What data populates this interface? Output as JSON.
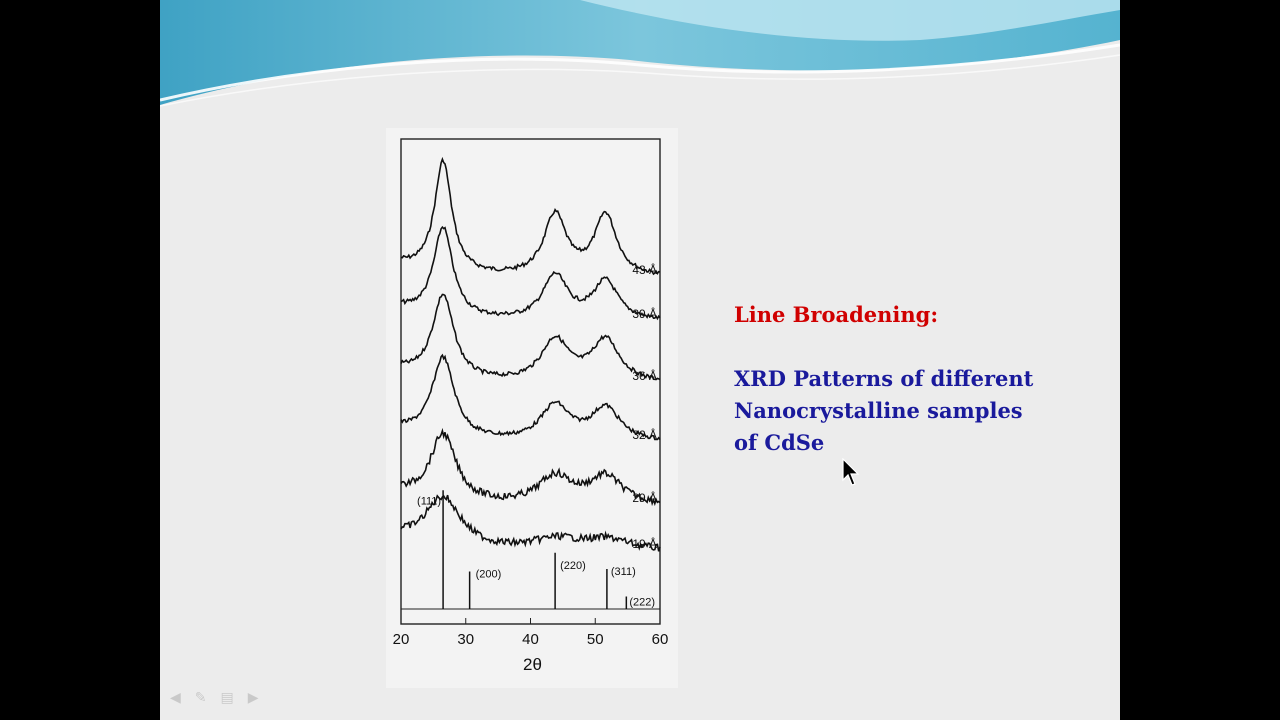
{
  "slide": {
    "heading": "Line Broadening:",
    "description_lines": [
      "XRD Patterns of different",
      "Nanocrystalline samples",
      "of CdSe"
    ],
    "colors": {
      "heading": "#d00000",
      "description": "#1a1a9c",
      "banner": "#5fb6d1",
      "background": "#ececec"
    },
    "nav_icons": [
      "arrow-left-icon",
      "pen-icon",
      "menu-icon",
      "arrow-right-icon"
    ]
  },
  "chart_data": {
    "type": "line",
    "xlabel": "2θ",
    "ylabel": "",
    "xlim": [
      20,
      60
    ],
    "x_ticks": [
      "20",
      "30",
      "40",
      "50",
      "60"
    ],
    "series": [
      {
        "name": "43 Å",
        "peaks": [
          {
            "x": 26.5,
            "height": 1.0
          },
          {
            "x": 43.8,
            "height": 0.55
          },
          {
            "x": 51.6,
            "height": 0.55
          }
        ]
      },
      {
        "name": "39 Å",
        "peaks": [
          {
            "x": 26.5,
            "height": 0.8
          },
          {
            "x": 43.8,
            "height": 0.4
          },
          {
            "x": 51.6,
            "height": 0.35
          }
        ]
      },
      {
        "name": "36 Å",
        "peaks": [
          {
            "x": 26.5,
            "height": 0.75
          },
          {
            "x": 43.8,
            "height": 0.38
          },
          {
            "x": 51.6,
            "height": 0.38
          }
        ]
      },
      {
        "name": "32 Å",
        "peaks": [
          {
            "x": 26.5,
            "height": 0.72
          },
          {
            "x": 43.8,
            "height": 0.32
          },
          {
            "x": 51.6,
            "height": 0.3
          }
        ]
      },
      {
        "name": "29 Å",
        "peaks": [
          {
            "x": 26.5,
            "height": 0.6
          },
          {
            "x": 43.8,
            "height": 0.25
          },
          {
            "x": 51.6,
            "height": 0.25
          }
        ]
      },
      {
        "name": "19 Å",
        "peaks": [
          {
            "x": 26.5,
            "height": 0.45
          },
          {
            "x": 44.0,
            "height": 0.1
          },
          {
            "x": 52.0,
            "height": 0.1
          }
        ]
      }
    ],
    "reference_lines": [
      {
        "label": "(111)",
        "x": 26.5,
        "height": 0.95
      },
      {
        "label": "(200)",
        "x": 30.6,
        "height": 0.3
      },
      {
        "label": "(220)",
        "x": 43.8,
        "height": 0.45
      },
      {
        "label": "(311)",
        "x": 51.8,
        "height": 0.32
      },
      {
        "label": "(222)",
        "x": 54.8,
        "height": 0.1
      }
    ]
  }
}
